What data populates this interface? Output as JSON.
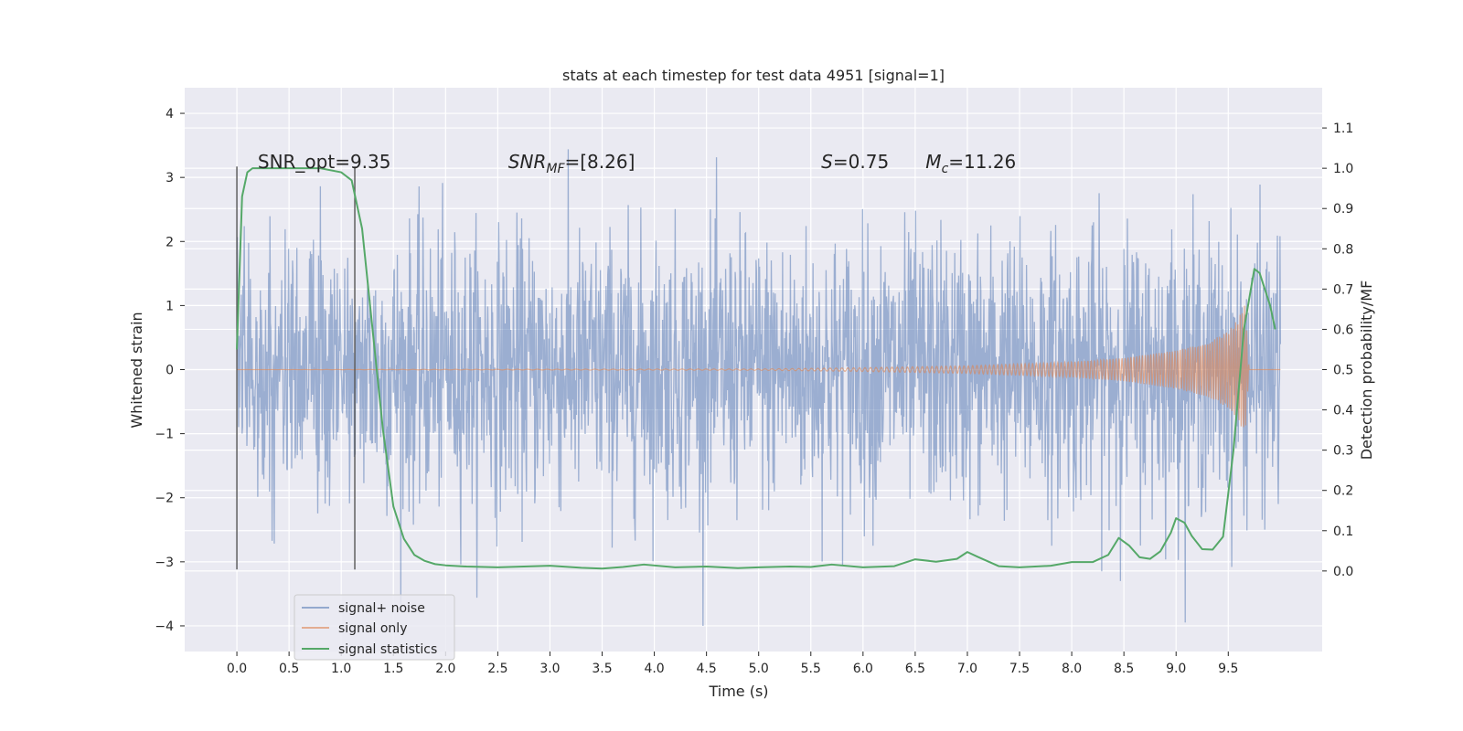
{
  "chart_data": {
    "type": "line",
    "title": "stats at each timestep for test data 4951 [signal=1]",
    "xlabel": "Time (s)",
    "ylabel_left": "Whitened strain",
    "ylabel_right": "Detection probability/MF",
    "xlim": [
      -0.5,
      10.4
    ],
    "ylim_left": [
      -4.4,
      4.4
    ],
    "ylim_right": [
      -0.2,
      1.2
    ],
    "x_ticks": [
      0.0,
      0.5,
      1.0,
      1.5,
      2.0,
      2.5,
      3.0,
      3.5,
      4.0,
      4.5,
      5.0,
      5.5,
      6.0,
      6.5,
      7.0,
      7.5,
      8.0,
      8.5,
      9.0,
      9.5
    ],
    "x_tick_labels": [
      "0.0",
      "0.5",
      "1.0",
      "1.5",
      "2.0",
      "2.5",
      "3.0",
      "3.5",
      "4.0",
      "4.5",
      "5.0",
      "5.5",
      "6.0",
      "6.5",
      "7.0",
      "7.5",
      "8.0",
      "8.5",
      "9.0",
      "9.5"
    ],
    "y_left_ticks": [
      4,
      3,
      2,
      1,
      0,
      -1,
      -2,
      -3,
      -4
    ],
    "y_left_tick_labels": [
      "4",
      "3",
      "2",
      "1",
      "0",
      "−1",
      "−2",
      "−3",
      "−4"
    ],
    "y_right_ticks": [
      1.1,
      1.0,
      0.9,
      0.8,
      0.7,
      0.6,
      0.5,
      0.4,
      0.3,
      0.2,
      0.1,
      0.0
    ],
    "y_right_tick_labels": [
      "1.1",
      "1.0",
      "0.9",
      "0.8",
      "0.7",
      "0.6",
      "0.5",
      "0.4",
      "0.3",
      "0.2",
      "0.1",
      "0.0"
    ],
    "grid": true,
    "legend_position": "lower-left",
    "colors": {
      "noise": "#4c72b0",
      "signal": "#dd8452",
      "stats": "#55a868",
      "vline": "#555555",
      "background": "#eaeaf2",
      "grid": "#ffffff"
    },
    "annotations": [
      {
        "x": 0.2,
        "label": "SNR_opt=9.35",
        "italic": false
      },
      {
        "x": 2.6,
        "label": "SNR",
        "sub": "MF",
        "tail": "=[8.26]",
        "italic": true
      },
      {
        "x": 5.6,
        "label": "S",
        "tail": "=0.75",
        "italic": true
      },
      {
        "x": 6.6,
        "label": "M",
        "sub": "c",
        "tail": "=11.26",
        "italic": true
      }
    ],
    "vlines": [
      0.0,
      1.13
    ],
    "noise_extent": [
      0.0,
      10.0
    ],
    "signal_envelope": {
      "t": [
        0.0,
        5.0,
        6.0,
        7.0,
        8.0,
        8.5,
        9.0,
        9.3,
        9.5,
        9.6,
        9.66,
        9.7,
        10.0
      ],
      "amp": [
        0.0,
        0.01,
        0.03,
        0.06,
        0.12,
        0.18,
        0.3,
        0.42,
        0.6,
        0.8,
        1.05,
        0.0,
        0.0
      ]
    },
    "series": [
      {
        "name": "signal+ noise",
        "role": "noise"
      },
      {
        "name": "signal only",
        "role": "signal"
      },
      {
        "name": "signal statistics",
        "role": "stats",
        "x": [
          0.0,
          0.05,
          0.1,
          0.15,
          0.2,
          0.3,
          0.5,
          0.8,
          1.0,
          1.1,
          1.2,
          1.3,
          1.4,
          1.5,
          1.6,
          1.7,
          1.8,
          1.9,
          2.0,
          2.2,
          2.5,
          3.0,
          3.3,
          3.5,
          3.7,
          3.9,
          4.2,
          4.5,
          4.8,
          5.0,
          5.3,
          5.5,
          5.7,
          6.0,
          6.3,
          6.5,
          6.7,
          6.9,
          7.0,
          7.1,
          7.3,
          7.5,
          7.8,
          8.0,
          8.2,
          8.35,
          8.45,
          8.55,
          8.65,
          8.75,
          8.85,
          8.95,
          9.0,
          9.08,
          9.15,
          9.25,
          9.35,
          9.45,
          9.55,
          9.65,
          9.75,
          9.8,
          9.9,
          9.95
        ],
        "y": [
          0.55,
          0.93,
          0.99,
          1.0,
          1.0,
          1.0,
          1.0,
          1.0,
          0.99,
          0.97,
          0.85,
          0.6,
          0.35,
          0.16,
          0.08,
          0.04,
          0.025,
          0.017,
          0.014,
          0.011,
          0.009,
          0.013,
          0.008,
          0.006,
          0.01,
          0.016,
          0.009,
          0.011,
          0.007,
          0.009,
          0.011,
          0.01,
          0.016,
          0.009,
          0.012,
          0.029,
          0.023,
          0.03,
          0.047,
          0.035,
          0.012,
          0.009,
          0.013,
          0.022,
          0.022,
          0.04,
          0.082,
          0.063,
          0.034,
          0.03,
          0.049,
          0.095,
          0.131,
          0.12,
          0.087,
          0.054,
          0.053,
          0.085,
          0.3,
          0.6,
          0.75,
          0.74,
          0.66,
          0.6
        ]
      }
    ]
  }
}
